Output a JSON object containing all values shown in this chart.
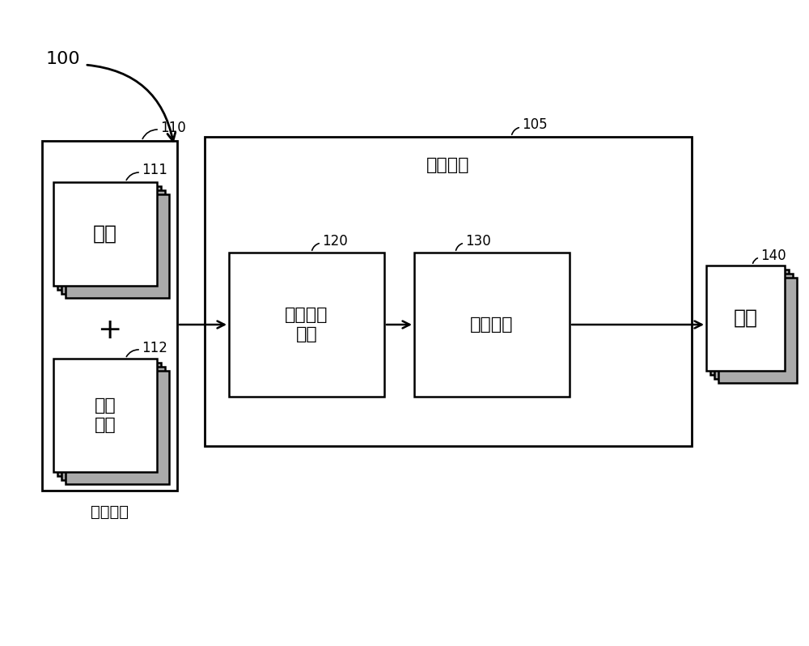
{
  "bg_color": "#ffffff",
  "label_100": "100",
  "label_110": "110",
  "label_111": "111",
  "label_112": "112",
  "label_105": "105",
  "label_120": "120",
  "label_130": "130",
  "label_140": "140",
  "text_wenti": "问题",
  "text_diyi_wenben": "第一\n文本",
  "text_jisuanshebi": "计算设备",
  "text_yuedu": "阅读理解\n模型",
  "text_diyi_shuchu": "第一输出",
  "text_daan": "答案",
  "text_diyi_shuru": "第一输入",
  "text_plus": "+",
  "font_size_label": 12,
  "font_size_text_large": 18,
  "font_size_text_medium": 16,
  "font_size_text_small": 14,
  "font_size_title": 16,
  "font_size_plus": 26
}
